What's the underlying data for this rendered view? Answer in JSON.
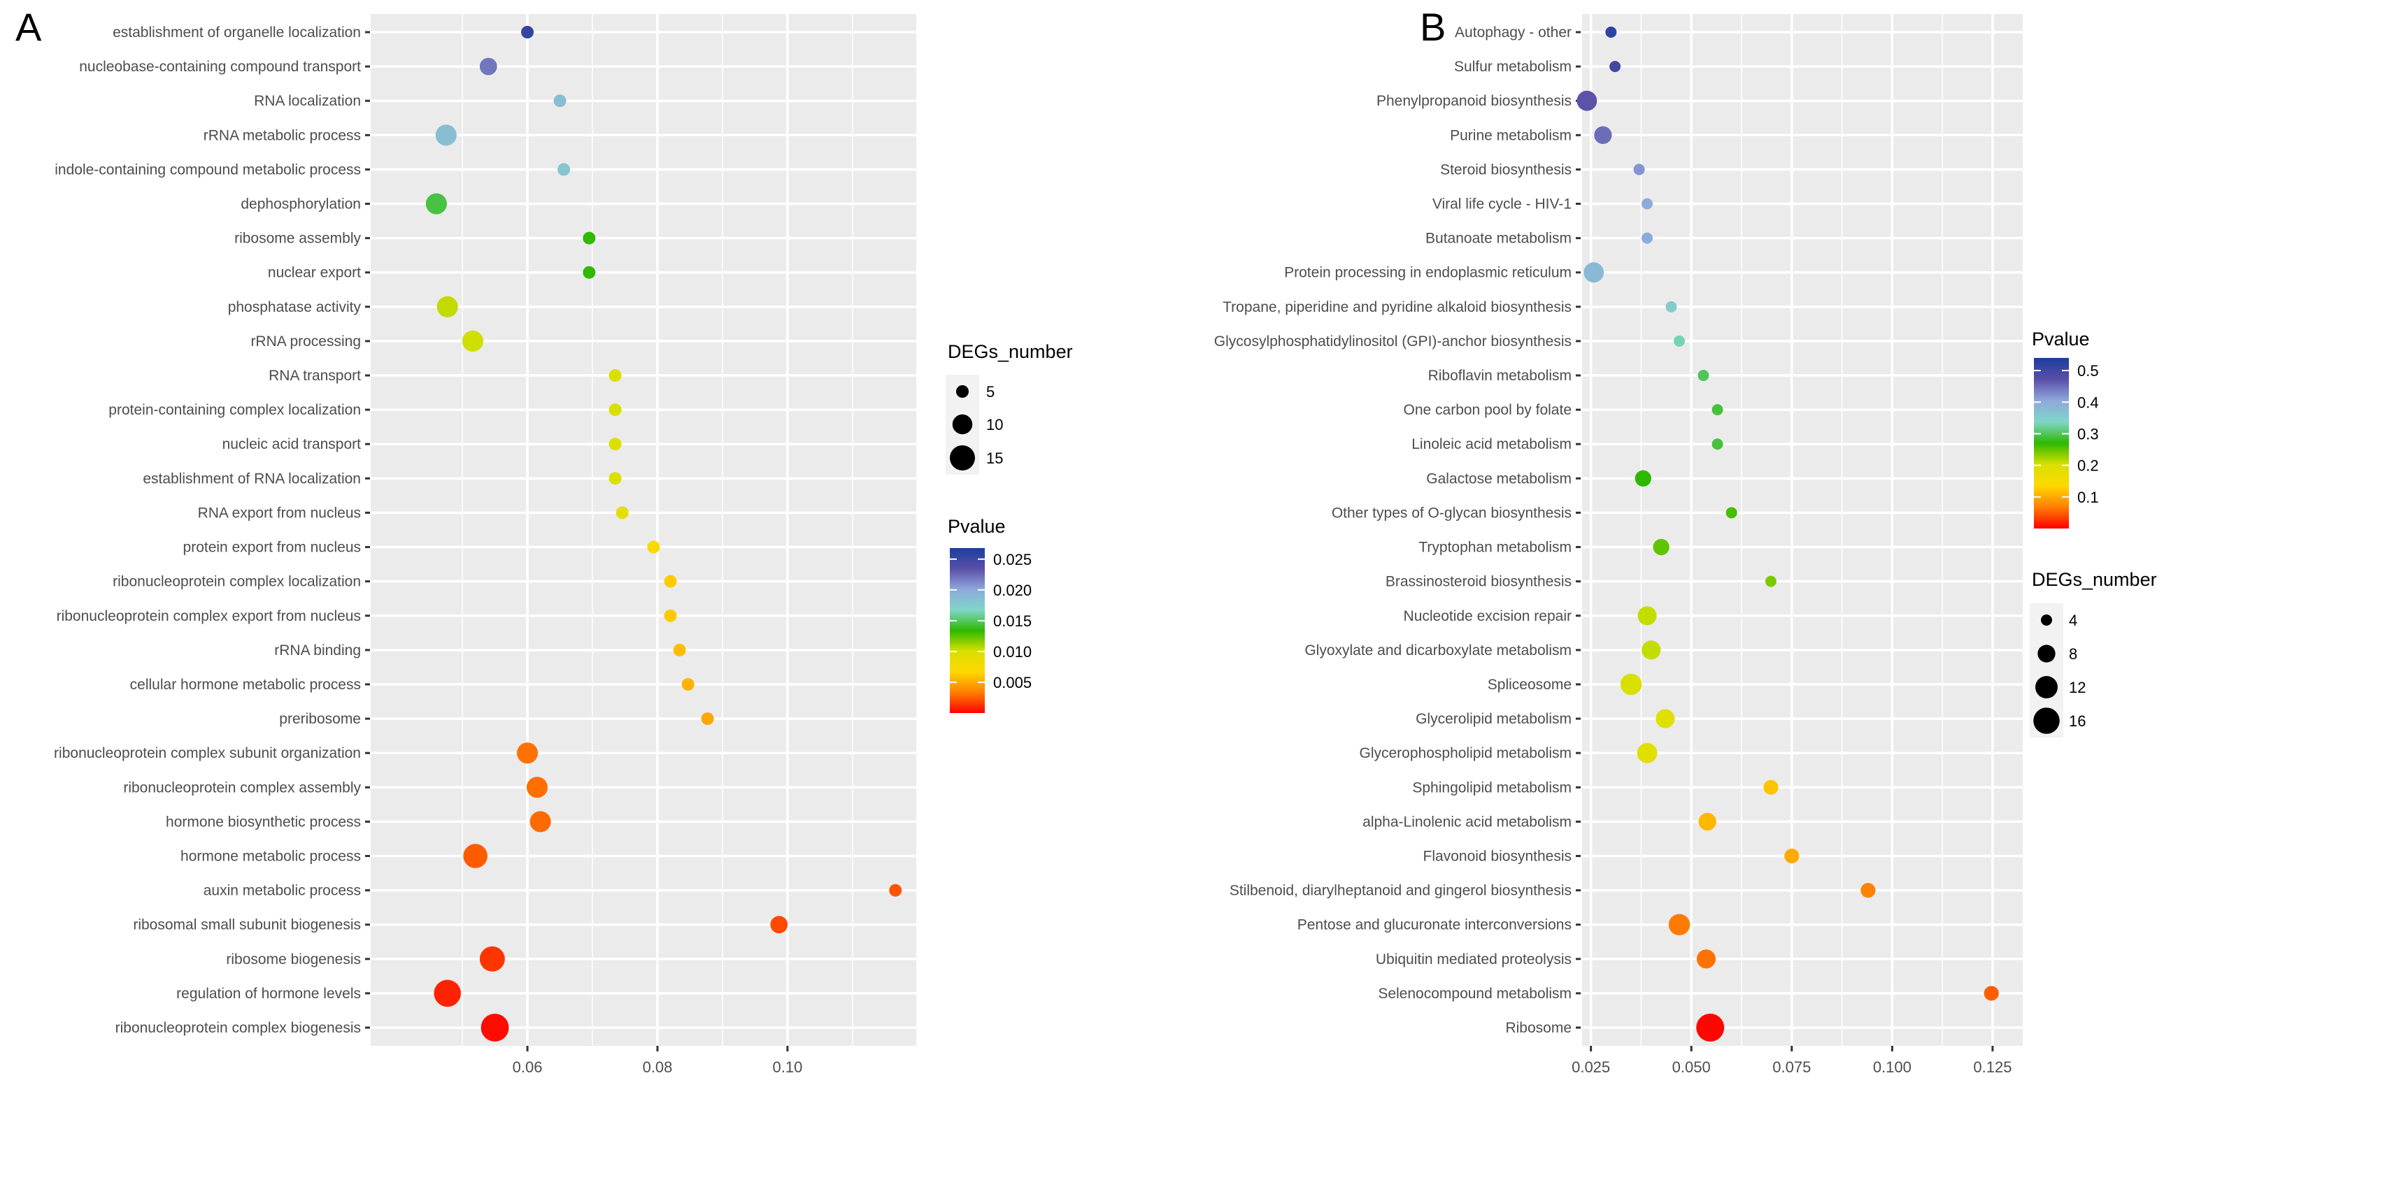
{
  "chart_data": [
    {
      "type": "scatter",
      "panel_label": "A",
      "title": "",
      "xlabel": "",
      "ylabel": "",
      "xlim": [
        0.0359,
        0.1198
      ],
      "xticks": [
        0.06,
        0.08,
        0.1
      ],
      "xtick_labels": [
        "0.06",
        "0.08",
        "0.10"
      ],
      "grid": true,
      "legend_placement": "right",
      "size_legend": {
        "title": "DEGs_number",
        "values": [
          5,
          10,
          15
        ],
        "labels": [
          "5",
          "10",
          "15"
        ],
        "range": [
          5,
          15
        ]
      },
      "color_legend": {
        "title": "Pvalue",
        "ticks": [
          0.025,
          0.02,
          0.015,
          0.01,
          0.005
        ],
        "labels": [
          "0.025",
          "0.020",
          "0.015",
          "0.010",
          "0.005"
        ],
        "range": [
          0,
          0.0268
        ]
      },
      "points": [
        {
          "term": "establishment of organelle localization",
          "x": 0.06,
          "pvalue": 0.0255,
          "count": 5
        },
        {
          "term": "nucleobase-containing compound transport",
          "x": 0.054,
          "pvalue": 0.022,
          "count": 8
        },
        {
          "term": "RNA localization",
          "x": 0.065,
          "pvalue": 0.0185,
          "count": 5
        },
        {
          "term": "rRNA metabolic process",
          "x": 0.0475,
          "pvalue": 0.0185,
          "count": 11
        },
        {
          "term": "indole-containing compound metabolic process",
          "x": 0.0656,
          "pvalue": 0.018,
          "count": 5
        },
        {
          "term": "dephosphorylation",
          "x": 0.046,
          "pvalue": 0.0145,
          "count": 11
        },
        {
          "term": "ribosome assembly",
          "x": 0.0695,
          "pvalue": 0.0135,
          "count": 5
        },
        {
          "term": "nuclear export",
          "x": 0.0695,
          "pvalue": 0.0135,
          "count": 5
        },
        {
          "term": "phosphatase activity",
          "x": 0.0477,
          "pvalue": 0.0105,
          "count": 11
        },
        {
          "term": "rRNA processing",
          "x": 0.0516,
          "pvalue": 0.0102,
          "count": 11
        },
        {
          "term": "RNA transport",
          "x": 0.0735,
          "pvalue": 0.0098,
          "count": 5
        },
        {
          "term": "protein-containing complex localization",
          "x": 0.0735,
          "pvalue": 0.0098,
          "count": 5
        },
        {
          "term": "nucleic acid transport",
          "x": 0.0735,
          "pvalue": 0.0098,
          "count": 5
        },
        {
          "term": "establishment of RNA localization",
          "x": 0.0735,
          "pvalue": 0.0098,
          "count": 5
        },
        {
          "term": "RNA export from nucleus",
          "x": 0.0746,
          "pvalue": 0.0092,
          "count": 5
        },
        {
          "term": "protein export from nucleus",
          "x": 0.0794,
          "pvalue": 0.0072,
          "count": 5
        },
        {
          "term": "ribonucleoprotein complex localization",
          "x": 0.082,
          "pvalue": 0.0062,
          "count": 5
        },
        {
          "term": "ribonucleoprotein complex export from nucleus",
          "x": 0.082,
          "pvalue": 0.0062,
          "count": 5
        },
        {
          "term": "rRNA binding",
          "x": 0.0834,
          "pvalue": 0.0057,
          "count": 5
        },
        {
          "term": "cellular hormone metabolic process",
          "x": 0.0847,
          "pvalue": 0.0053,
          "count": 5
        },
        {
          "term": "preribosome",
          "x": 0.0877,
          "pvalue": 0.0048,
          "count": 5
        },
        {
          "term": "ribonucleoprotein complex subunit organization",
          "x": 0.06,
          "pvalue": 0.003,
          "count": 11
        },
        {
          "term": "ribonucleoprotein complex assembly",
          "x": 0.0615,
          "pvalue": 0.0029,
          "count": 11
        },
        {
          "term": "hormone biosynthetic process",
          "x": 0.062,
          "pvalue": 0.0028,
          "count": 11
        },
        {
          "term": "hormone metabolic process",
          "x": 0.052,
          "pvalue": 0.0024,
          "count": 14
        },
        {
          "term": "auxin metabolic process",
          "x": 0.1166,
          "pvalue": 0.0022,
          "count": 5
        },
        {
          "term": "ribosomal small subunit biogenesis",
          "x": 0.0987,
          "pvalue": 0.0019,
          "count": 8
        },
        {
          "term": "ribosome biogenesis",
          "x": 0.0546,
          "pvalue": 0.0014,
          "count": 15
        },
        {
          "term": "regulation of hormone levels",
          "x": 0.0477,
          "pvalue": 0.0009,
          "count": 17
        },
        {
          "term": "ribonucleoprotein complex biogenesis",
          "x": 0.055,
          "pvalue": 0.0003,
          "count": 18
        }
      ]
    },
    {
      "type": "scatter",
      "panel_label": "B",
      "title": "",
      "xlabel": "",
      "ylabel": "",
      "xlim": [
        0.0228,
        0.1325
      ],
      "xticks": [
        0.025,
        0.05,
        0.075,
        0.1,
        0.125
      ],
      "xtick_labels": [
        "0.025",
        "0.050",
        "0.075",
        "0.100",
        "0.125"
      ],
      "grid": true,
      "legend_placement": "right",
      "size_legend": {
        "title": "DEGs_number",
        "values": [
          4,
          8,
          12,
          16
        ],
        "labels": [
          "4",
          "8",
          "12",
          "16"
        ],
        "range": [
          4,
          18
        ]
      },
      "color_legend": {
        "title": "Pvalue",
        "ticks": [
          0.5,
          0.4,
          0.3,
          0.2,
          0.1
        ],
        "labels": [
          "0.5",
          "0.4",
          "0.3",
          "0.2",
          "0.1"
        ],
        "range": [
          0.0,
          0.54
        ]
      },
      "points": [
        {
          "term": "Autophagy - other",
          "x": 0.03,
          "pvalue": 0.52,
          "count": 4
        },
        {
          "term": "Sulfur metabolism",
          "x": 0.031,
          "pvalue": 0.5,
          "count": 4
        },
        {
          "term": "Phenylpropanoid biosynthesis",
          "x": 0.024,
          "pvalue": 0.47,
          "count": 10
        },
        {
          "term": "Purine metabolism",
          "x": 0.028,
          "pvalue": 0.45,
          "count": 8
        },
        {
          "term": "Steroid biosynthesis",
          "x": 0.037,
          "pvalue": 0.42,
          "count": 4
        },
        {
          "term": "Viral life cycle - HIV-1",
          "x": 0.039,
          "pvalue": 0.4,
          "count": 4
        },
        {
          "term": "Butanoate metabolism",
          "x": 0.039,
          "pvalue": 0.4,
          "count": 4
        },
        {
          "term": "Protein processing in endoplasmic reticulum",
          "x": 0.0257,
          "pvalue": 0.38,
          "count": 10
        },
        {
          "term": "Tropane, piperidine and pyridine alkaloid biosynthesis",
          "x": 0.045,
          "pvalue": 0.35,
          "count": 4
        },
        {
          "term": "Glycosylphosphatidylinositol (GPI)-anchor biosynthesis",
          "x": 0.047,
          "pvalue": 0.33,
          "count": 4
        },
        {
          "term": "Riboflavin metabolism",
          "x": 0.053,
          "pvalue": 0.3,
          "count": 4
        },
        {
          "term": "One carbon pool by folate",
          "x": 0.0565,
          "pvalue": 0.29,
          "count": 4
        },
        {
          "term": "Linoleic acid metabolism",
          "x": 0.0565,
          "pvalue": 0.29,
          "count": 4
        },
        {
          "term": "Galactose metabolism",
          "x": 0.038,
          "pvalue": 0.27,
          "count": 7
        },
        {
          "term": "Other types of O-glycan biosynthesis",
          "x": 0.06,
          "pvalue": 0.26,
          "count": 4
        },
        {
          "term": "Tryptophan metabolism",
          "x": 0.0425,
          "pvalue": 0.25,
          "count": 7
        },
        {
          "term": "Brassinosteroid biosynthesis",
          "x": 0.0698,
          "pvalue": 0.24,
          "count": 4
        },
        {
          "term": "Nucleotide excision repair",
          "x": 0.039,
          "pvalue": 0.21,
          "count": 9
        },
        {
          "term": "Glyoxylate and dicarboxylate metabolism",
          "x": 0.04,
          "pvalue": 0.21,
          "count": 9
        },
        {
          "term": "Spliceosome",
          "x": 0.035,
          "pvalue": 0.2,
          "count": 11
        },
        {
          "term": "Glycerolipid metabolism",
          "x": 0.0435,
          "pvalue": 0.19,
          "count": 9
        },
        {
          "term": "Glycerophospholipid metabolism",
          "x": 0.039,
          "pvalue": 0.19,
          "count": 10
        },
        {
          "term": "Sphingolipid metabolism",
          "x": 0.0698,
          "pvalue": 0.12,
          "count": 6
        },
        {
          "term": "alpha-Linolenic acid metabolism",
          "x": 0.054,
          "pvalue": 0.11,
          "count": 8
        },
        {
          "term": "Flavonoid biosynthesis",
          "x": 0.075,
          "pvalue": 0.1,
          "count": 6
        },
        {
          "term": "Stilbenoid, diarylheptanoid and gingerol biosynthesis",
          "x": 0.094,
          "pvalue": 0.07,
          "count": 6
        },
        {
          "term": "Pentose and glucuronate interconversions",
          "x": 0.047,
          "pvalue": 0.065,
          "count": 11
        },
        {
          "term": "Ubiquitin mediated proteolysis",
          "x": 0.0537,
          "pvalue": 0.06,
          "count": 9
        },
        {
          "term": "Selenocompound metabolism",
          "x": 0.1247,
          "pvalue": 0.05,
          "count": 6
        },
        {
          "term": "Ribosome",
          "x": 0.0547,
          "pvalue": 0.003,
          "count": 18
        }
      ]
    }
  ],
  "colors": {
    "panel_background": "#EBEBEB",
    "grid": "#FFFFFF",
    "gradient": [
      "#FF0000",
      "#FF7F00",
      "#FFD800",
      "#D8E000",
      "#2DB800",
      "#7FD6C8",
      "#8FA8DC",
      "#5A4FA8",
      "#1A3F9C"
    ]
  }
}
